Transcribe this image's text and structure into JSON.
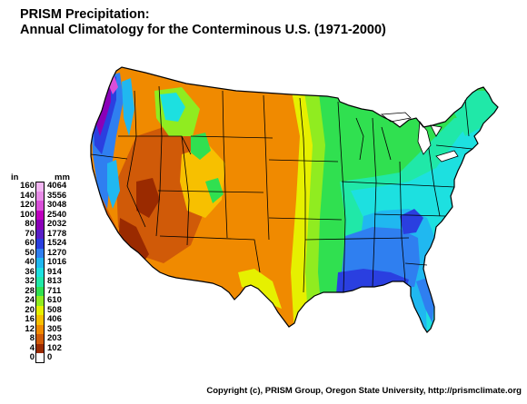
{
  "title": {
    "line1": "PRISM Precipitation:",
    "line2": "Annual Climatology for the Conterminous U.S. (1971-2000)"
  },
  "legend": {
    "in_header": "in",
    "mm_header": "mm",
    "rows": [
      {
        "in": "160",
        "mm": "4064",
        "color": "#f2b6f2"
      },
      {
        "in": "140",
        "mm": "3556",
        "color": "#e88ce8"
      },
      {
        "in": "120",
        "mm": "3048",
        "color": "#d94fd9"
      },
      {
        "in": "100",
        "mm": "2540",
        "color": "#bf00bf"
      },
      {
        "in": "80",
        "mm": "2032",
        "color": "#8a00b8"
      },
      {
        "in": "70",
        "mm": "1778",
        "color": "#5a1fc8"
      },
      {
        "in": "60",
        "mm": "1524",
        "color": "#2a3fe0"
      },
      {
        "in": "50",
        "mm": "1270",
        "color": "#2f7ff0"
      },
      {
        "in": "40",
        "mm": "1016",
        "color": "#20b8f0"
      },
      {
        "in": "36",
        "mm": "914",
        "color": "#1de0e0"
      },
      {
        "in": "32",
        "mm": "813",
        "color": "#20e8a8"
      },
      {
        "in": "28",
        "mm": "711",
        "color": "#30e050"
      },
      {
        "in": "24",
        "mm": "610",
        "color": "#90ec20"
      },
      {
        "in": "20",
        "mm": "508",
        "color": "#e6f000"
      },
      {
        "in": "16",
        "mm": "406",
        "color": "#f7c000"
      },
      {
        "in": "12",
        "mm": "305",
        "color": "#f08a00"
      },
      {
        "in": "8",
        "mm": "203",
        "color": "#d05a08"
      },
      {
        "in": "4",
        "mm": "102",
        "color": "#9a2a00"
      },
      {
        "in": "0",
        "mm": "0",
        "color": "#ffffff"
      }
    ]
  },
  "copyright": "Copyright (c), PRISM Group, Oregon State University, http://prismclimate.org",
  "map_colors": {
    "border": "#000000",
    "very_dry": "#9a2a00",
    "dry": "#d05a08",
    "semi_dry": "#f08a00",
    "moderate_dry": "#f7c000",
    "transition": "#e6f000",
    "moderate": "#90ec20",
    "moist": "#30e050",
    "humid": "#20e8a8",
    "wet": "#1de0e0",
    "very_wet": "#20b8f0",
    "southeast": "#2f7ff0",
    "gulf": "#2a3fe0",
    "coast_max": "#8a00b8",
    "coast_peak": "#d94fd9"
  }
}
